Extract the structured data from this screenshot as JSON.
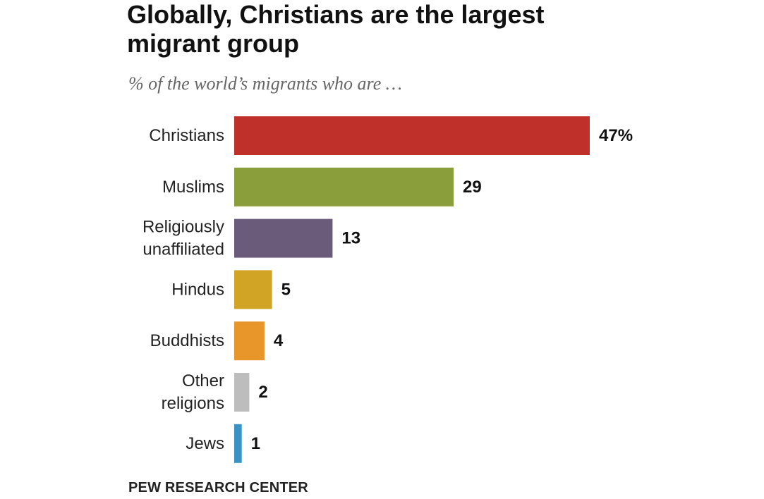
{
  "title_lines": [
    "Globally, Christians are the largest",
    "migrant group"
  ],
  "subtitle": "% of the world’s migrants who are …",
  "source": "PEW RESEARCH CENTER",
  "chart_data": {
    "type": "bar",
    "orientation": "horizontal",
    "title": "Globally, Christians are the largest migrant group",
    "subtitle": "% of the world’s migrants who are …",
    "xlabel": "",
    "ylabel": "",
    "xlim": [
      0,
      47
    ],
    "grid": false,
    "legend": "none",
    "unit": "%",
    "categories": [
      [
        "Christians"
      ],
      [
        "Muslims"
      ],
      [
        "Religiously",
        "unaffiliated"
      ],
      [
        "Hindus"
      ],
      [
        "Buddhists"
      ],
      [
        "Other",
        "religions"
      ],
      [
        "Jews"
      ]
    ],
    "values": [
      47,
      29,
      13,
      5,
      4,
      2,
      1
    ],
    "value_labels": [
      "47%",
      "29",
      "13",
      "5",
      "4",
      "2",
      "1"
    ],
    "colors": [
      "#c0302a",
      "#8a9f3c",
      "#6b5b7b",
      "#d1a425",
      "#e8962a",
      "#bdbdbd",
      "#3a93c6"
    ]
  }
}
